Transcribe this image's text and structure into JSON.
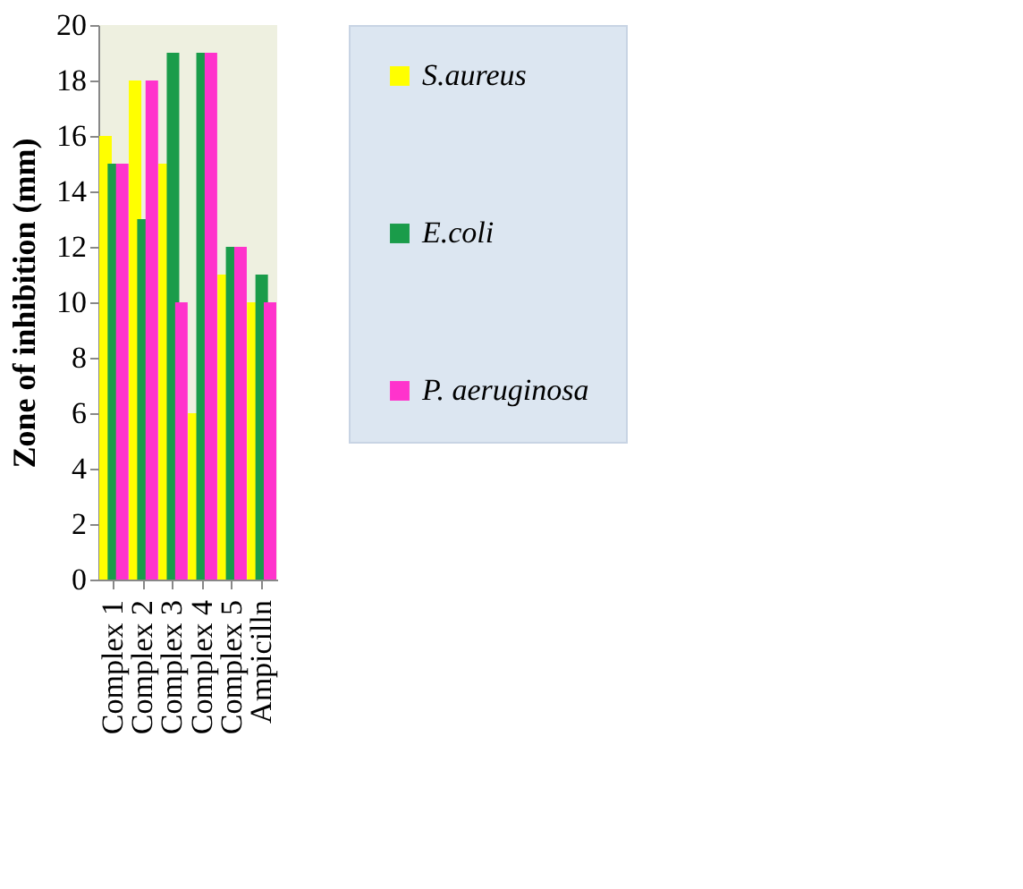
{
  "chart_data": {
    "type": "bar",
    "ylabel": "Zone of inhibition (mm)",
    "categories": [
      "Complex 1",
      "Complex 2",
      "Complex 3",
      "Complex 4",
      "Complex 5",
      "Ampicilln"
    ],
    "series": [
      {
        "name": "S.aureus",
        "color": "#ffff00",
        "values": [
          16,
          18,
          15,
          6,
          11,
          10
        ]
      },
      {
        "name": "E.coli",
        "color": "#1a9c4a",
        "values": [
          15,
          13,
          19,
          19,
          12,
          11
        ]
      },
      {
        "name": "P. aeruginosa",
        "color": "#ff33cc",
        "values": [
          15,
          18,
          10,
          19,
          12,
          10
        ]
      }
    ],
    "ylim": [
      0,
      20
    ],
    "yticks": [
      0,
      2,
      4,
      6,
      8,
      10,
      12,
      14,
      16,
      18,
      20
    ],
    "grid": false,
    "legend": "right"
  }
}
